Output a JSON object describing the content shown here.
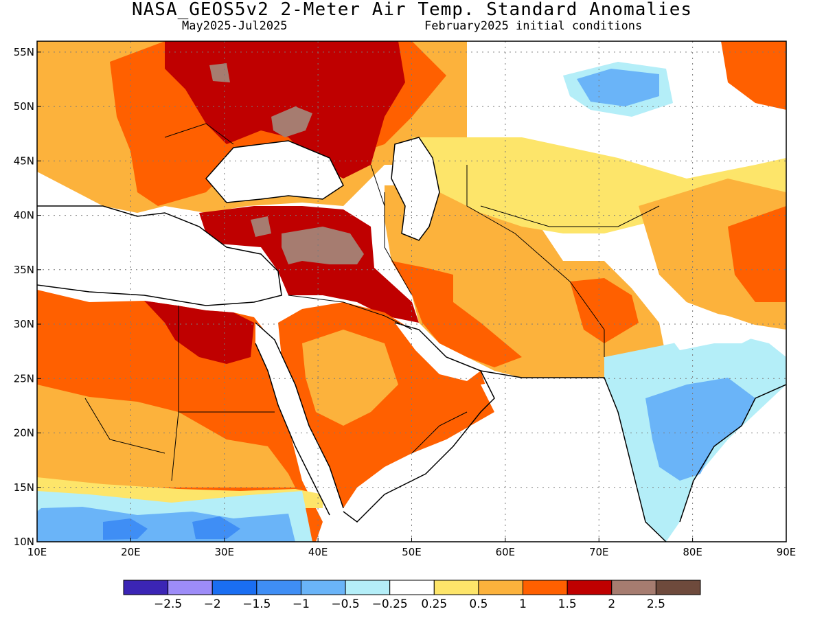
{
  "title": "NASA_GEOS5v2 2-Meter Air Temp. Standard Anomalies",
  "subtitle_left": "May2025-Jul2025",
  "subtitle_right": "February2025 initial conditions",
  "map": {
    "lon_range": [
      10,
      90
    ],
    "lat_range": [
      10,
      56
    ],
    "lon_ticks": [
      10,
      20,
      30,
      40,
      50,
      60,
      70,
      80,
      90
    ],
    "lon_tick_labels": [
      "10E",
      "20E",
      "30E",
      "40E",
      "50E",
      "60E",
      "70E",
      "80E",
      "90E"
    ],
    "lat_ticks": [
      10,
      15,
      20,
      25,
      30,
      35,
      40,
      45,
      50,
      55
    ],
    "lat_tick_labels": [
      "10N",
      "15N",
      "20N",
      "25N",
      "30N",
      "35N",
      "40N",
      "45N",
      "50N",
      "55N"
    ],
    "grid": "dotted",
    "ocean_color": "#ffffff",
    "region_outlines": "coastlines and country borders",
    "anomaly_regions": [
      {
        "name": "Eastern Europe / southern Russia",
        "level": "1.5 to 2+",
        "color": "#bf0000"
      },
      {
        "name": "Turkey and Levant",
        "level": "2 to 2.5",
        "color": "#a67c70"
      },
      {
        "name": "North Africa",
        "level": "1 to 1.5",
        "color": "#ff6000"
      },
      {
        "name": "Egypt",
        "level": "1.5 to 2",
        "color": "#bf0000"
      },
      {
        "name": "Arabian Peninsula",
        "level": "0.5 to 1.5",
        "color": "#ff6000"
      },
      {
        "name": "Iran / Central Asia",
        "level": "0.25 to 1",
        "color": "#fcb23c"
      },
      {
        "name": "Kazakhstan",
        "level": "-0.5 to -1",
        "color": "#6ab4f8"
      },
      {
        "name": "India",
        "level": "-0.25 to -1",
        "color": "#6ab4f8"
      },
      {
        "name": "Sahel",
        "level": "-0.25 to -1",
        "color": "#6ab4f8"
      }
    ]
  },
  "colorbar": {
    "colors": [
      "#3b25b5",
      "#9d8cf8",
      "#1a6ef2",
      "#3f8ef5",
      "#6ab4f8",
      "#b4eef8",
      "#ffffff",
      "#fde56a",
      "#fcb23c",
      "#ff6000",
      "#bf0000",
      "#a67c70",
      "#6e4a3c"
    ],
    "labels": [
      "-2.5",
      "-2",
      "-1.5",
      "-1",
      "-0.5",
      "-0.25",
      "0.25",
      "0.5",
      "1",
      "1.5",
      "2",
      "2.5"
    ]
  }
}
